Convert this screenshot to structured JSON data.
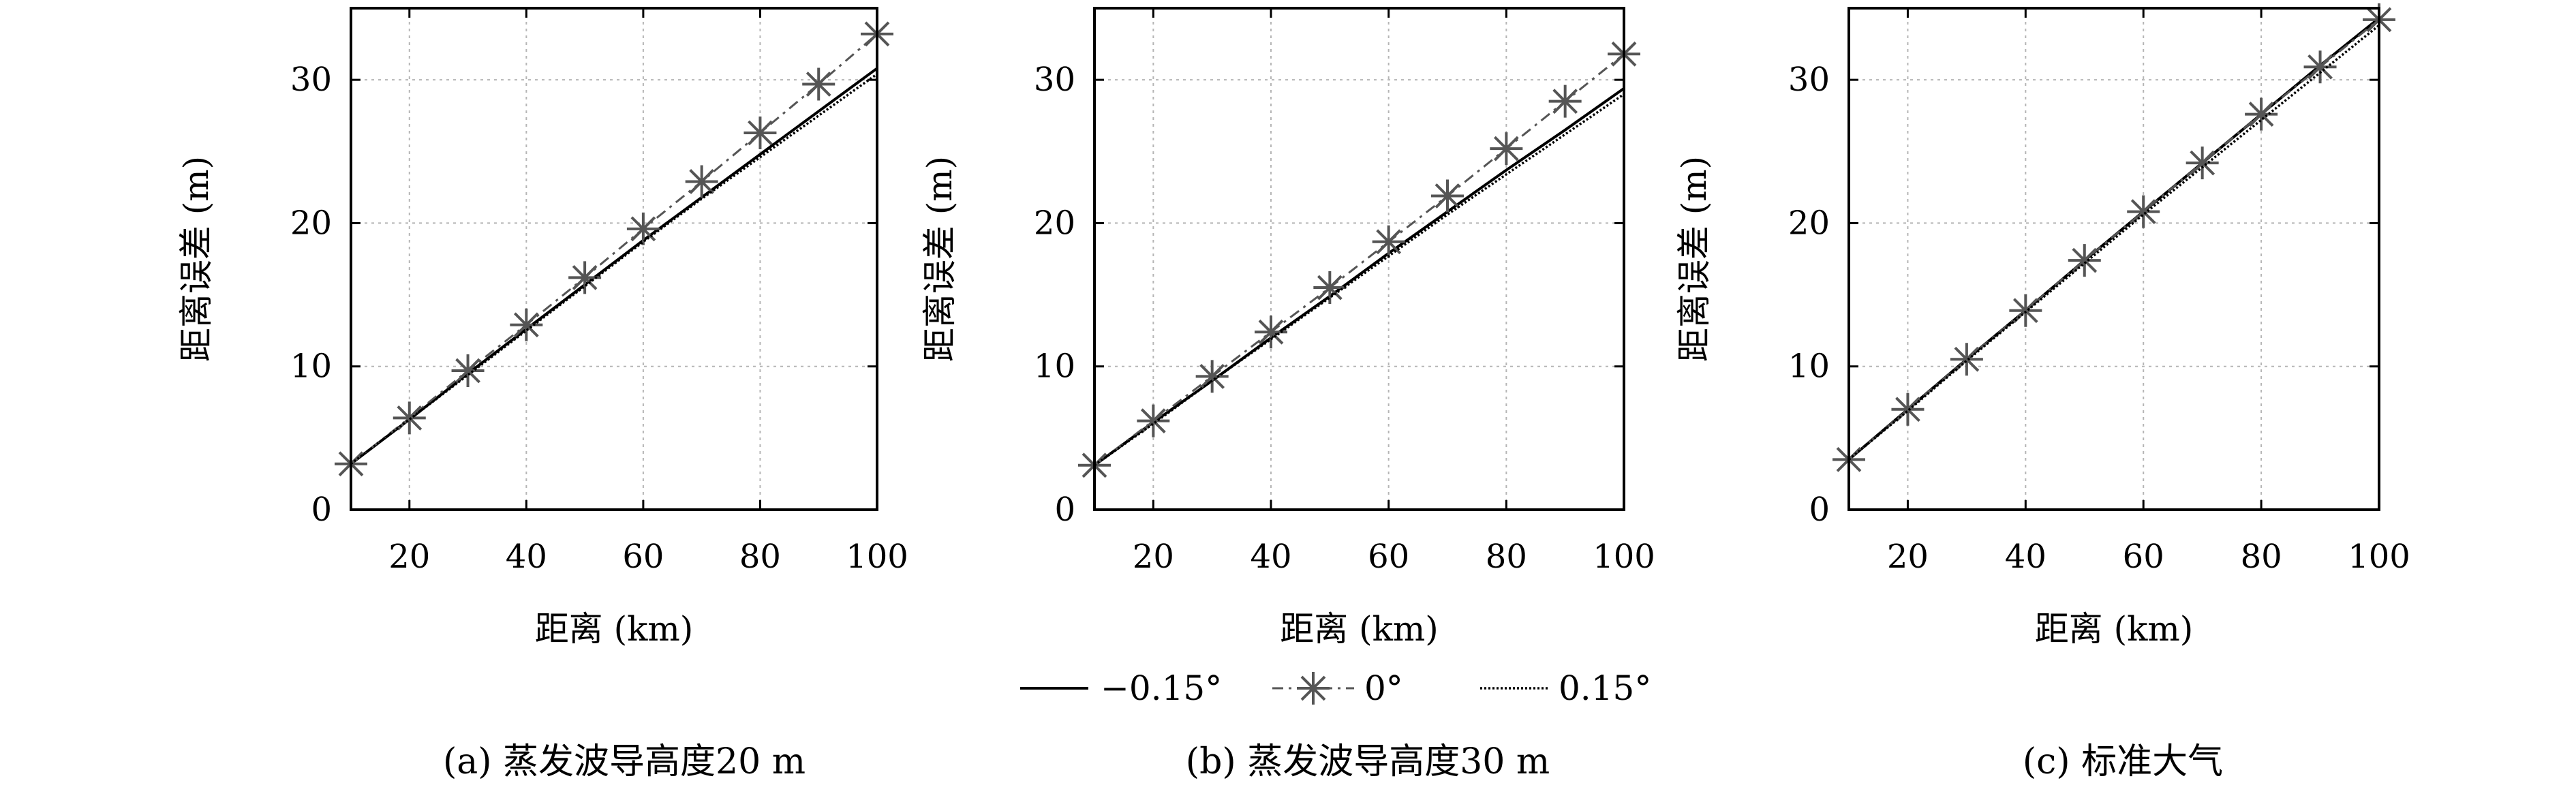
{
  "chart_data": [
    {
      "type": "line",
      "caption": "(a) 蒸发波导高度20 m",
      "xlabel": "距离 (km)",
      "ylabel": "距离误差 (m)",
      "xlim": [
        10,
        100
      ],
      "ylim": [
        0,
        35
      ],
      "xticks": [
        20,
        40,
        60,
        80,
        100
      ],
      "yticks": [
        0,
        10,
        20,
        30
      ],
      "grid": true,
      "x": [
        10,
        20,
        30,
        40,
        50,
        60,
        70,
        80,
        90,
        100
      ],
      "series": [
        {
          "name": "−0.15°",
          "style": "solid",
          "values": [
            3.2,
            6.3,
            9.5,
            12.6,
            15.7,
            18.8,
            21.8,
            24.8,
            27.8,
            30.8
          ]
        },
        {
          "name": "0°",
          "style": "dashdot-star",
          "values": [
            3.2,
            6.4,
            9.7,
            12.9,
            16.2,
            19.6,
            22.9,
            26.3,
            29.7,
            33.2
          ]
        },
        {
          "name": "0.15°",
          "style": "dotted",
          "values": [
            3.2,
            6.3,
            9.4,
            12.5,
            15.6,
            18.7,
            21.7,
            24.6,
            27.5,
            30.4
          ]
        }
      ]
    },
    {
      "type": "line",
      "caption": "(b) 蒸发波导高度30 m",
      "xlabel": "距离 (km)",
      "ylabel": "距离误差 (m)",
      "xlim": [
        10,
        100
      ],
      "ylim": [
        0,
        35
      ],
      "xticks": [
        20,
        40,
        60,
        80,
        100
      ],
      "yticks": [
        0,
        10,
        20,
        30
      ],
      "grid": true,
      "x": [
        10,
        20,
        30,
        40,
        50,
        60,
        70,
        80,
        90,
        100
      ],
      "series": [
        {
          "name": "−0.15°",
          "style": "solid",
          "values": [
            3.1,
            6.1,
            9.0,
            12.0,
            14.9,
            17.9,
            20.8,
            23.7,
            26.5,
            29.4
          ]
        },
        {
          "name": "0°",
          "style": "dashdot-star",
          "values": [
            3.1,
            6.2,
            9.3,
            12.4,
            15.5,
            18.7,
            21.9,
            25.2,
            28.5,
            31.8
          ]
        },
        {
          "name": "0.15°",
          "style": "dotted",
          "values": [
            3.1,
            6.0,
            9.0,
            11.9,
            14.8,
            17.7,
            20.6,
            23.4,
            26.2,
            29.0
          ]
        }
      ]
    },
    {
      "type": "line",
      "caption": "(c) 标准大气",
      "xlabel": "距离 (km)",
      "ylabel": "距离误差 (m)",
      "xlim": [
        10,
        100
      ],
      "ylim": [
        0,
        35
      ],
      "xticks": [
        20,
        40,
        60,
        80,
        100
      ],
      "yticks": [
        0,
        10,
        20,
        30
      ],
      "grid": true,
      "x": [
        10,
        20,
        30,
        40,
        50,
        60,
        70,
        80,
        90,
        100
      ],
      "series": [
        {
          "name": "−0.15°",
          "style": "solid",
          "values": [
            3.5,
            7.0,
            10.5,
            13.9,
            17.4,
            20.8,
            24.2,
            27.6,
            31.0,
            34.3
          ]
        },
        {
          "name": "0°",
          "style": "dashdot-star",
          "values": [
            3.5,
            7.0,
            10.5,
            13.9,
            17.4,
            20.8,
            24.2,
            27.6,
            30.9,
            34.2
          ]
        },
        {
          "name": "0.15°",
          "style": "dotted",
          "values": [
            3.5,
            6.9,
            10.4,
            13.8,
            17.2,
            20.6,
            23.9,
            27.2,
            30.5,
            33.8
          ]
        }
      ]
    }
  ],
  "legend": {
    "placement": "bottom-center",
    "items": [
      {
        "label": "−0.15°",
        "style": "solid"
      },
      {
        "label": "0°",
        "style": "dashdot-star"
      },
      {
        "label": "0.15°",
        "style": "dotted"
      }
    ]
  },
  "colors": {
    "line": "#000000",
    "marker_line": "#555555",
    "grid": "#b5b5b5"
  }
}
